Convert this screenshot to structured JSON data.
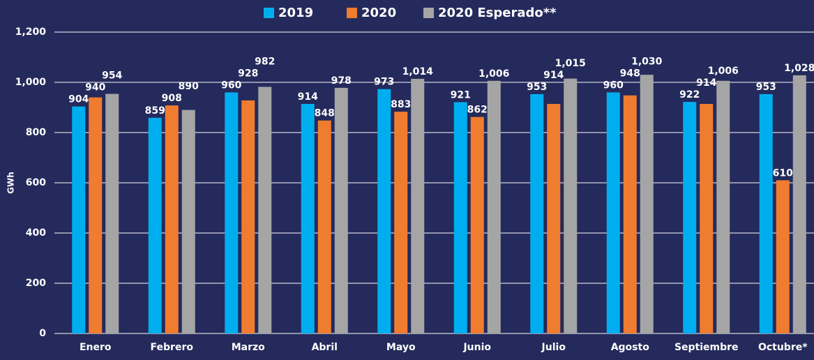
{
  "chart_data": {
    "type": "bar",
    "y_label": "GWh",
    "categories": [
      "Enero",
      "Febrero",
      "Marzo",
      "Abril",
      "Mayo",
      "Junio",
      "Julio",
      "Agosto",
      "Septiembre",
      "Octubre*"
    ],
    "series": [
      {
        "name": "2019",
        "color": "#00aeef",
        "values": [
          904,
          859,
          960,
          914,
          973,
          921,
          953,
          960,
          922,
          953
        ],
        "value_labels": [
          "904",
          "859",
          "960",
          "914",
          "973",
          "921",
          "953",
          "960",
          "922",
          "953"
        ]
      },
      {
        "name": "2020",
        "color": "#f07c30",
        "values": [
          940,
          908,
          928,
          848,
          883,
          862,
          914,
          948,
          914,
          610
        ],
        "value_labels": [
          "940",
          "908",
          "928",
          "848",
          "883",
          "862",
          "914",
          "948",
          "914",
          "610"
        ]
      },
      {
        "name": "2020 Esperado**",
        "color": "#a5a5a5",
        "values": [
          954,
          890,
          982,
          978,
          1014,
          1006,
          1015,
          1030,
          1006,
          1028
        ],
        "value_labels": [
          "954",
          "890",
          "982",
          "978",
          "1,014",
          "1,006",
          "1,015",
          "1,030",
          "1,006",
          "1,028"
        ]
      }
    ],
    "ylim": [
      0,
      1200
    ],
    "yticks": [
      0,
      200,
      400,
      600,
      800,
      {
        "value": 1000,
        "label": "1,000"
      },
      {
        "value": 1200,
        "label": "1,200"
      }
    ],
    "grid": true,
    "legend": "top"
  }
}
